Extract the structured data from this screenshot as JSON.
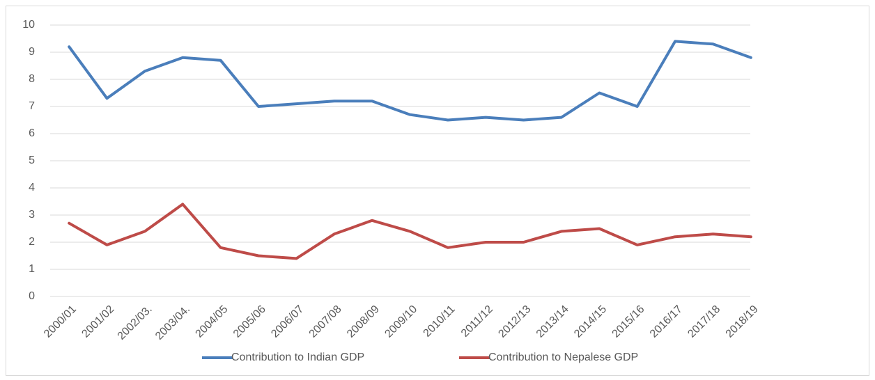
{
  "chart_data": {
    "type": "line",
    "categories": [
      "2000/01",
      "2001/02",
      "2002/03.",
      "2003/04.",
      "2004/05",
      "2005/06",
      "2006/07",
      "2007/08",
      "2008/09",
      "2009/10",
      "2010/11",
      "2011/12",
      "2012/13",
      "2013/14",
      "2014/15",
      "2015/16",
      "2016/17",
      "2017/18",
      "2018/19"
    ],
    "series": [
      {
        "name": "Contribution to Indian GDP",
        "color": "#4a7ebb",
        "values": [
          9.2,
          7.3,
          8.3,
          8.8,
          8.7,
          7.0,
          7.1,
          7.2,
          7.2,
          6.7,
          6.5,
          6.6,
          6.5,
          6.6,
          7.5,
          7.0,
          9.4,
          9.3,
          8.8
        ]
      },
      {
        "name": "Contribution to Nepalese GDP",
        "color": "#be4b48",
        "values": [
          2.7,
          1.9,
          2.4,
          3.4,
          1.8,
          1.5,
          1.4,
          2.3,
          2.8,
          2.4,
          1.8,
          2.0,
          2.0,
          2.4,
          2.5,
          1.9,
          2.2,
          2.3,
          2.2
        ]
      }
    ],
    "ylim": [
      0,
      10
    ],
    "yticks": [
      0,
      1,
      2,
      3,
      4,
      5,
      6,
      7,
      8,
      9,
      10
    ],
    "grid": true,
    "legend": "bottom"
  }
}
